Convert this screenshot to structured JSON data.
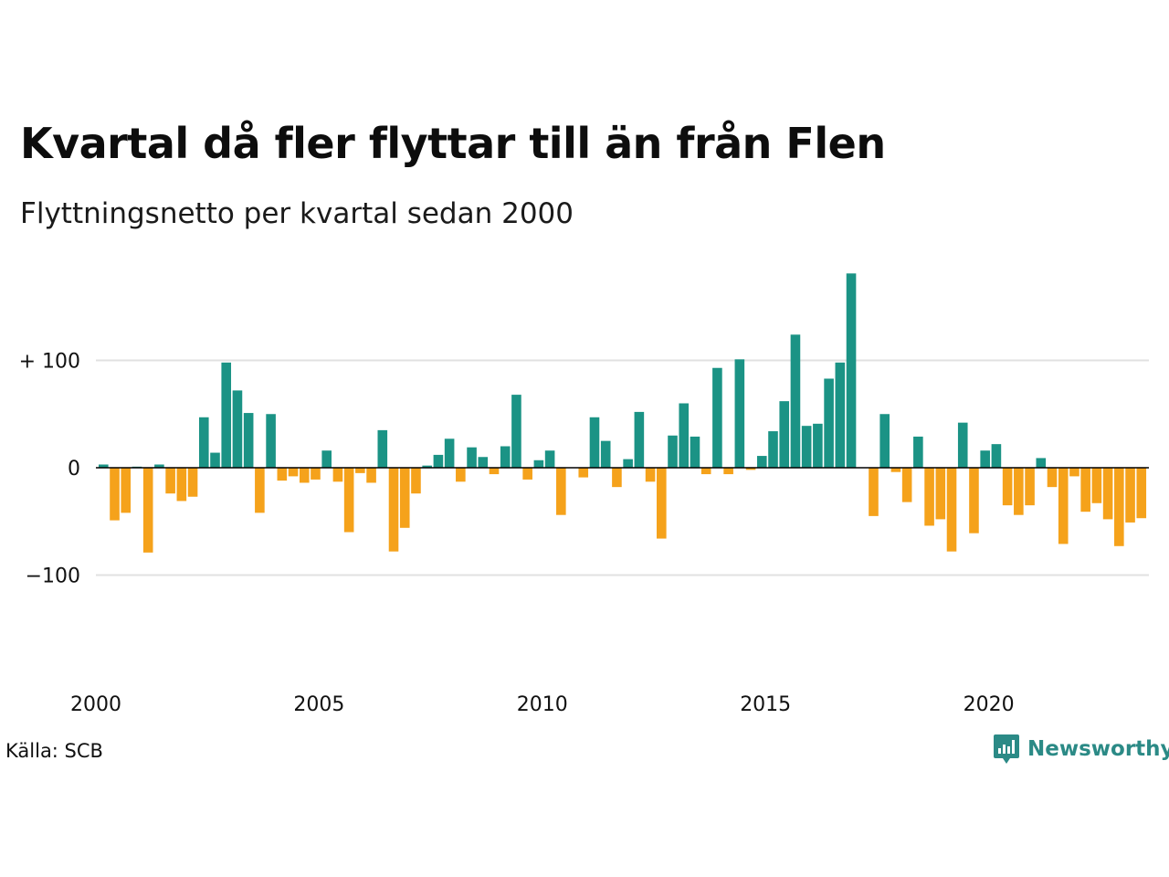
{
  "title": "Kvartal då fler flyttar till än från Flen",
  "subtitle": "Flyttningsnetto per kvartal sedan 2000",
  "source": "Källa: SCB",
  "brand": "Newsworthy",
  "colors": {
    "positive": "#1b9385",
    "negative": "#f5a21b",
    "grid": "#e1e1e1",
    "zero": "#000000",
    "brand": "#2b8a86"
  },
  "chart_data": {
    "type": "bar",
    "title": "Kvartal då fler flyttar till än från Flen",
    "subtitle": "Flyttningsnetto per kvartal sedan 2000",
    "ylim": [
      -160,
      185
    ],
    "y_ticks": [
      {
        "value": 100,
        "label": "+ 100"
      },
      {
        "value": 0,
        "label": "0"
      },
      {
        "value": -100,
        "label": "−100"
      }
    ],
    "x_ticks": [
      {
        "year": 2000,
        "label": "2000"
      },
      {
        "year": 2005,
        "label": "2005"
      },
      {
        "year": 2010,
        "label": "2010"
      },
      {
        "year": 2015,
        "label": "2015"
      },
      {
        "year": 2020,
        "label": "2020"
      }
    ],
    "start_year": 2000,
    "grid": true,
    "values": [
      3,
      -49,
      -42,
      1,
      -79,
      3,
      -24,
      -31,
      -27,
      47,
      14,
      98,
      72,
      51,
      -42,
      50,
      -12,
      -8,
      -14,
      -11,
      16,
      -13,
      -60,
      -5,
      -14,
      35,
      -78,
      -56,
      -24,
      2,
      12,
      27,
      -13,
      19,
      10,
      -6,
      20,
      68,
      -11,
      7,
      16,
      -44,
      0,
      -9,
      47,
      25,
      -18,
      8,
      52,
      -13,
      -66,
      30,
      60,
      29,
      -6,
      93,
      -6,
      101,
      -2,
      11,
      34,
      62,
      124,
      39,
      41,
      83,
      98,
      181,
      0,
      -45,
      50,
      -4,
      -32,
      29,
      -54,
      -48,
      -78,
      42,
      -61,
      16,
      22,
      -35,
      -44,
      -35,
      9,
      -18,
      -71,
      -8,
      -41,
      -33,
      -48,
      -73,
      -51,
      -47
    ]
  }
}
